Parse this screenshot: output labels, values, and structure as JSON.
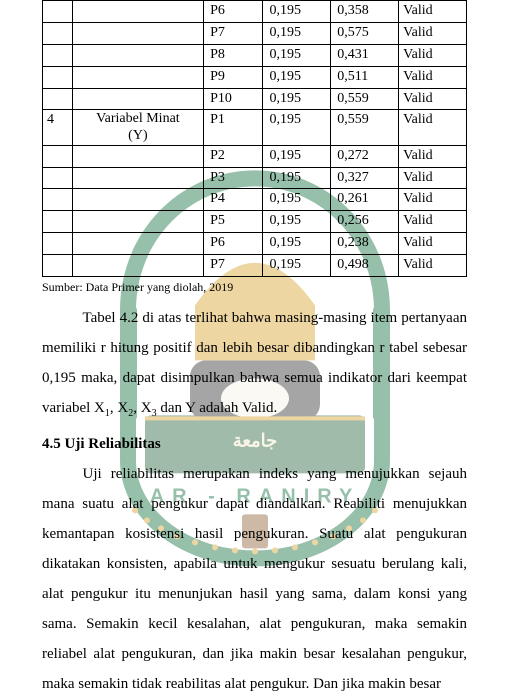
{
  "table": {
    "rows": [
      {
        "no": "",
        "var": "",
        "code": "P6",
        "rtab": "0,195",
        "rhit": "0,358",
        "stat": "Valid"
      },
      {
        "no": "",
        "var": "",
        "code": "P7",
        "rtab": "0,195",
        "rhit": "0,575",
        "stat": "Valid"
      },
      {
        "no": "",
        "var": "",
        "code": "P8",
        "rtab": "0,195",
        "rhit": "0,431",
        "stat": "Valid"
      },
      {
        "no": "",
        "var": "",
        "code": "P9",
        "rtab": "0,195",
        "rhit": "0,511",
        "stat": "Valid"
      },
      {
        "no": "",
        "var": "",
        "code": "P10",
        "rtab": "0,195",
        "rhit": "0,559",
        "stat": "Valid"
      },
      {
        "no": "4",
        "var": "Variabel Minat (Y)",
        "code": "P1",
        "rtab": "0,195",
        "rhit": "0,559",
        "stat": "Valid"
      },
      {
        "no": "",
        "var": "",
        "code": "P2",
        "rtab": "0,195",
        "rhit": "0,272",
        "stat": "Valid"
      },
      {
        "no": "",
        "var": "",
        "code": "P3",
        "rtab": "0,195",
        "rhit": "0,327",
        "stat": "Valid"
      },
      {
        "no": "",
        "var": "",
        "code": "P4",
        "rtab": "0,195",
        "rhit": "0,261",
        "stat": "Valid"
      },
      {
        "no": "",
        "var": "",
        "code": "P5",
        "rtab": "0,195",
        "rhit": "0,256",
        "stat": "Valid"
      },
      {
        "no": "",
        "var": "",
        "code": "P6",
        "rtab": "0,195",
        "rhit": "0,238",
        "stat": "Valid"
      },
      {
        "no": "",
        "var": "",
        "code": "P7",
        "rtab": "0,195",
        "rhit": "0,498",
        "stat": "Valid"
      }
    ]
  },
  "caption": "Sumber: Data Primer yang diolah, 2019",
  "para1_a": "Tabel 4.2 di atas terlihat bahwa masing-masing item pertanyaan memiliki r hitung positif dan lebih besar dibandingkan r tabel sebesar 0,195 maka, dapat disimpulkan bahwa semua indikator dari keempat variabel X",
  "para1_b": ", X",
  "para1_c": ", X",
  "para1_d": " dan Y adalah Valid.",
  "section_title": "4.5 Uji Reliabilitas",
  "para2": "Uji reliabilitas merupakan indeks yang menujukkan sejauh mana suatu alat pengukur dapat diandalkan. Reabiliti menujukkan kemantapan kosistensi hasil pengukuran. Suatu alat pengukuran dikatakan konsisten, apabila untuk mengukur sesuatu berulang kali, alat pengukur itu menunjukan hasil yang sama, dalam konsi yang sama. Semakin kecil kesalahan, alat pengukuran, maka semakin reliabel alat pengukuran, dan jika makin besar kesalahan pengukur, maka semakin tidak reabilitas alat pengukur. Dan jika makin besar",
  "sub1": "1",
  "sub2": "2",
  "sub3": "3",
  "colors": {
    "text": "#000000",
    "border": "#000000",
    "wm_green": "#0a6b3a",
    "wm_yellow": "#d9a024",
    "wm_brown": "#8a5a2b",
    "wm_dark": "#2a2a2a"
  }
}
